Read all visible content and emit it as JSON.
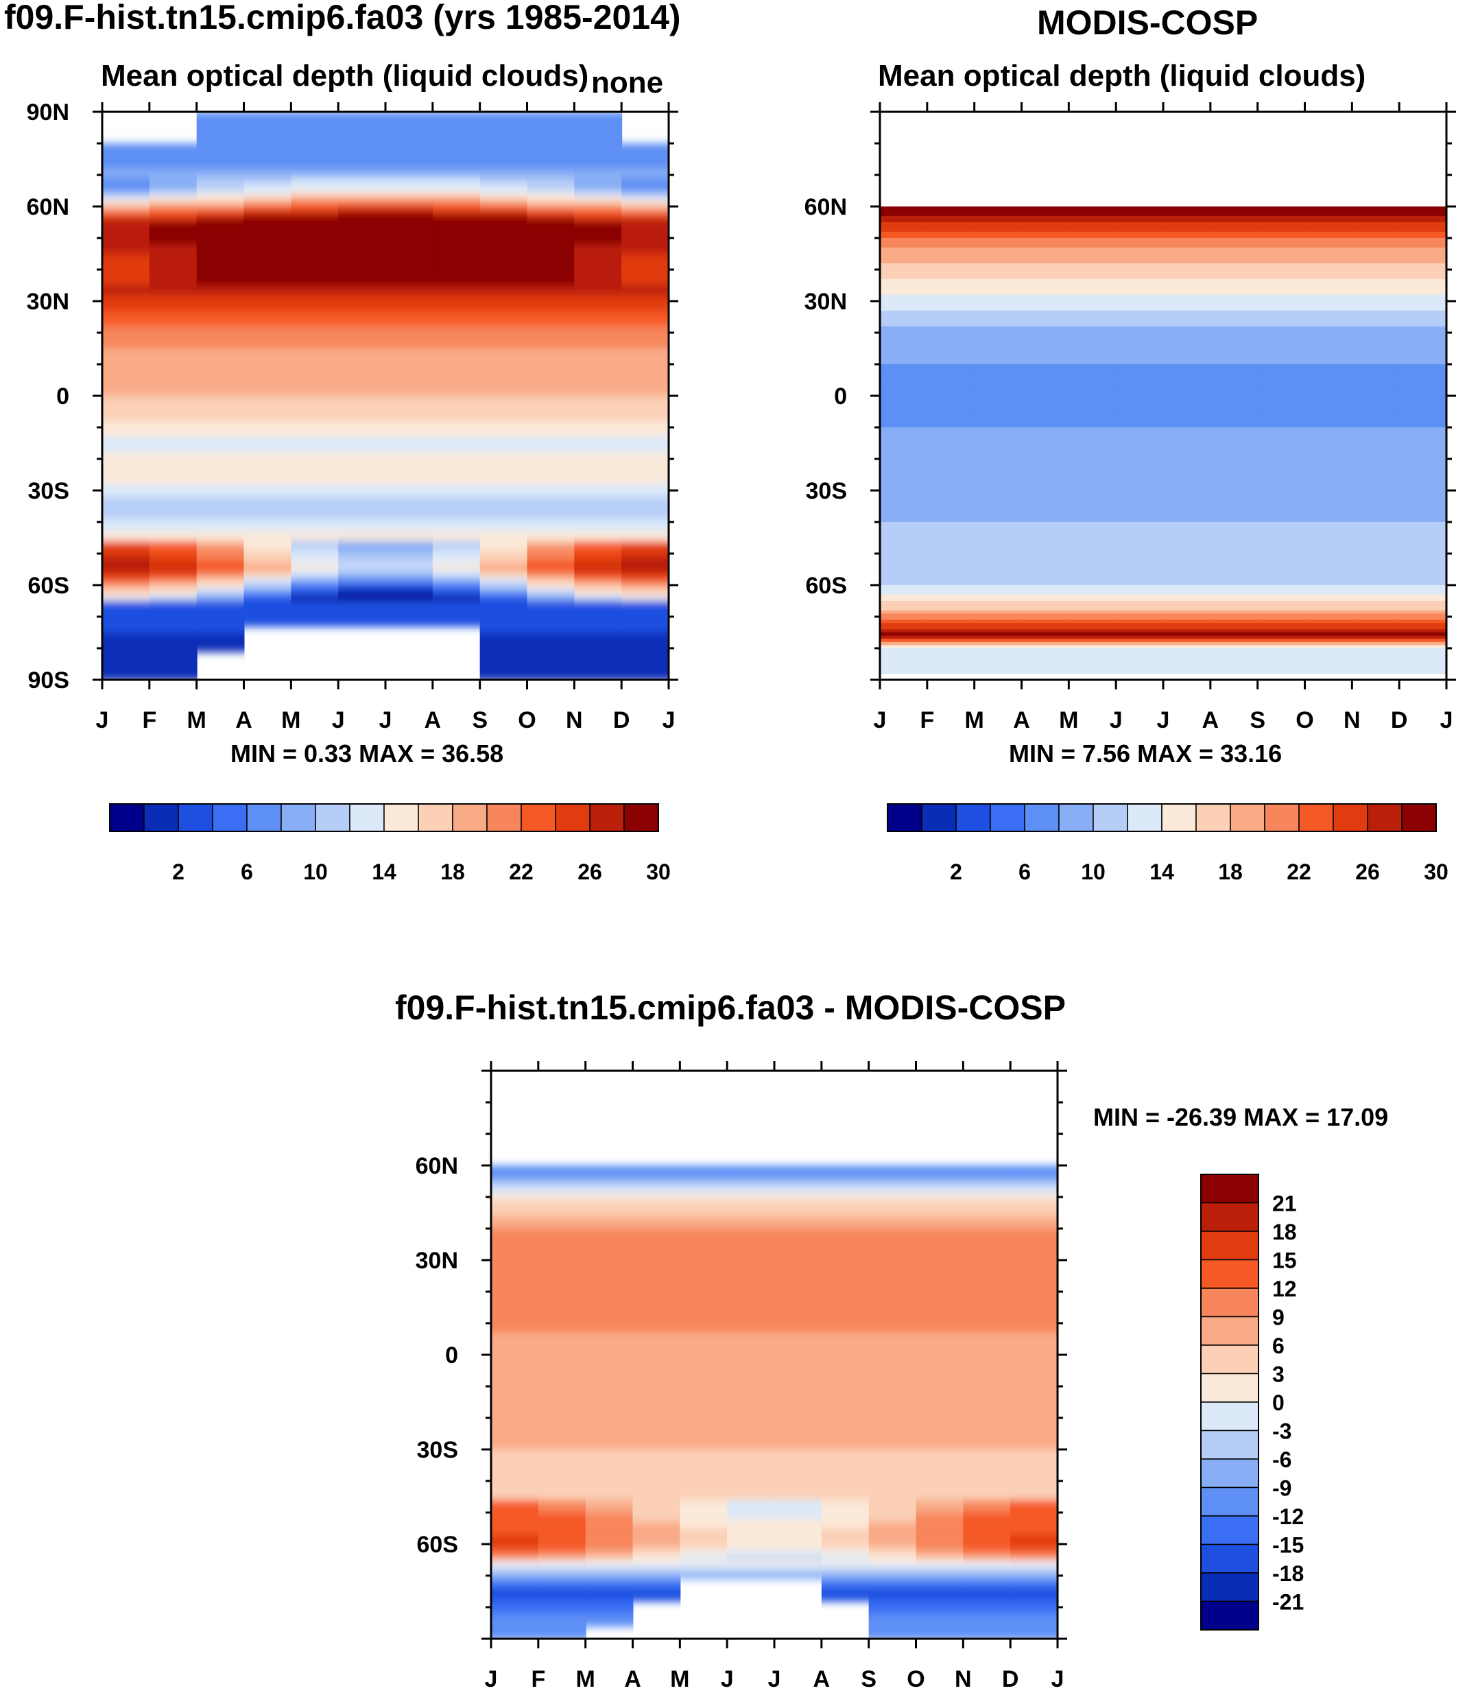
{
  "colors": {
    "levels_seq": [
      "#00008b",
      "#0a2db8",
      "#1e4fe0",
      "#3a6ef5",
      "#5d8ff5",
      "#88aef5",
      "#b6cdf7",
      "#dbe9f9",
      "#fbe9d9",
      "#fbd0b6",
      "#f9ab88",
      "#f7865c",
      "#f55a26",
      "#e13b10",
      "#b91f09",
      "#8b0000"
    ]
  },
  "panel_model": {
    "header": "f09.F-hist.tn15.cmip6.fa03 (yrs 1985-2014)",
    "title": "Mean optical depth (liquid clouds)",
    "title_right": "none",
    "stats": "MIN =   0.33 MAX =  36.58"
  },
  "panel_obs": {
    "header": "MODIS-COSP",
    "title": "Mean optical depth (liquid clouds)",
    "stats": "MIN =   7.56 MAX =  33.16"
  },
  "panel_diff": {
    "title": "f09.F-hist.tn15.cmip6.fa03 - MODIS-COSP",
    "stats": "MIN = -26.39 MAX =  17.09"
  },
  "colorbar_seq": {
    "labels": [
      "2",
      "6",
      "10",
      "14",
      "18",
      "22",
      "26",
      "30"
    ]
  },
  "colorbar_diff": {
    "labels": [
      "21",
      "18",
      "15",
      "12",
      "9",
      "6",
      "3",
      "0",
      "-3",
      "-6",
      "-9",
      "-12",
      "-15",
      "-18",
      "-21"
    ]
  },
  "chart_data": [
    {
      "type": "heatmap",
      "title": "Mean optical depth (liquid clouds)",
      "header": "f09.F-hist.tn15.cmip6.fa03 (yrs 1985-2014)",
      "x": [
        "J",
        "F",
        "M",
        "A",
        "M",
        "J",
        "J",
        "A",
        "S",
        "O",
        "N",
        "D",
        "J"
      ],
      "y_ticks": [
        "90N",
        "60N",
        "30N",
        "0",
        "30S",
        "60S",
        "90S"
      ],
      "ylim": [
        -90,
        90
      ],
      "zlim": [
        0.33,
        36.58
      ],
      "levels": [
        2,
        4,
        6,
        8,
        10,
        12,
        14,
        16,
        18,
        20,
        22,
        24,
        26,
        28,
        30
      ],
      "profile_lat": [
        85,
        75,
        65,
        55,
        45,
        35,
        25,
        15,
        5,
        -5,
        -15,
        -25,
        -35,
        -45,
        -55,
        -65,
        -75,
        -85
      ],
      "profile_value": [
        8,
        9,
        12,
        31,
        30,
        29,
        25,
        22,
        21,
        19,
        15,
        18,
        12,
        17,
        22,
        6,
        4,
        2
      ]
    },
    {
      "type": "heatmap",
      "title": "Mean optical depth (liquid clouds)",
      "header": "MODIS-COSP",
      "x": [
        "J",
        "F",
        "M",
        "A",
        "M",
        "J",
        "J",
        "A",
        "S",
        "O",
        "N",
        "D",
        "J"
      ],
      "y_ticks": [
        "60N",
        "30N",
        "0",
        "30S",
        "60S"
      ],
      "ylim": [
        -90,
        90
      ],
      "zlim": [
        7.56,
        33.16
      ],
      "levels": [
        2,
        4,
        6,
        8,
        10,
        12,
        14,
        16,
        18,
        20,
        22,
        24,
        26,
        28,
        30
      ],
      "profile_lat": [
        60,
        55,
        50,
        45,
        40,
        35,
        30,
        25,
        20,
        10,
        0,
        -10,
        -20,
        -30,
        -40,
        -50,
        -60,
        -68,
        -72,
        -76,
        -80
      ],
      "profile_value": [
        32,
        28,
        24,
        21,
        19,
        17,
        15,
        13,
        11,
        10,
        9,
        10,
        10,
        11,
        12,
        13,
        14,
        20,
        26,
        31,
        14
      ]
    },
    {
      "type": "heatmap",
      "title": "f09.F-hist.tn15.cmip6.fa03 - MODIS-COSP",
      "x": [
        "J",
        "F",
        "M",
        "A",
        "M",
        "J",
        "J",
        "A",
        "S",
        "O",
        "N",
        "D",
        "J"
      ],
      "y_ticks": [
        "60N",
        "30N",
        "0",
        "30S",
        "60S"
      ],
      "ylim": [
        -90,
        90
      ],
      "zlim": [
        -26.39,
        17.09
      ],
      "levels": [
        -21,
        -18,
        -15,
        -12,
        -9,
        -6,
        -3,
        0,
        3,
        6,
        9,
        12,
        15,
        18,
        21
      ],
      "profile_lat": [
        58,
        50,
        40,
        30,
        20,
        10,
        0,
        -10,
        -20,
        -30,
        -40,
        -50,
        -60,
        -68,
        -75,
        -82
      ],
      "profile_value": [
        -12,
        2,
        9,
        12,
        11,
        10,
        7,
        6,
        9,
        6,
        4,
        6,
        9,
        -3,
        -18,
        -12
      ]
    }
  ]
}
